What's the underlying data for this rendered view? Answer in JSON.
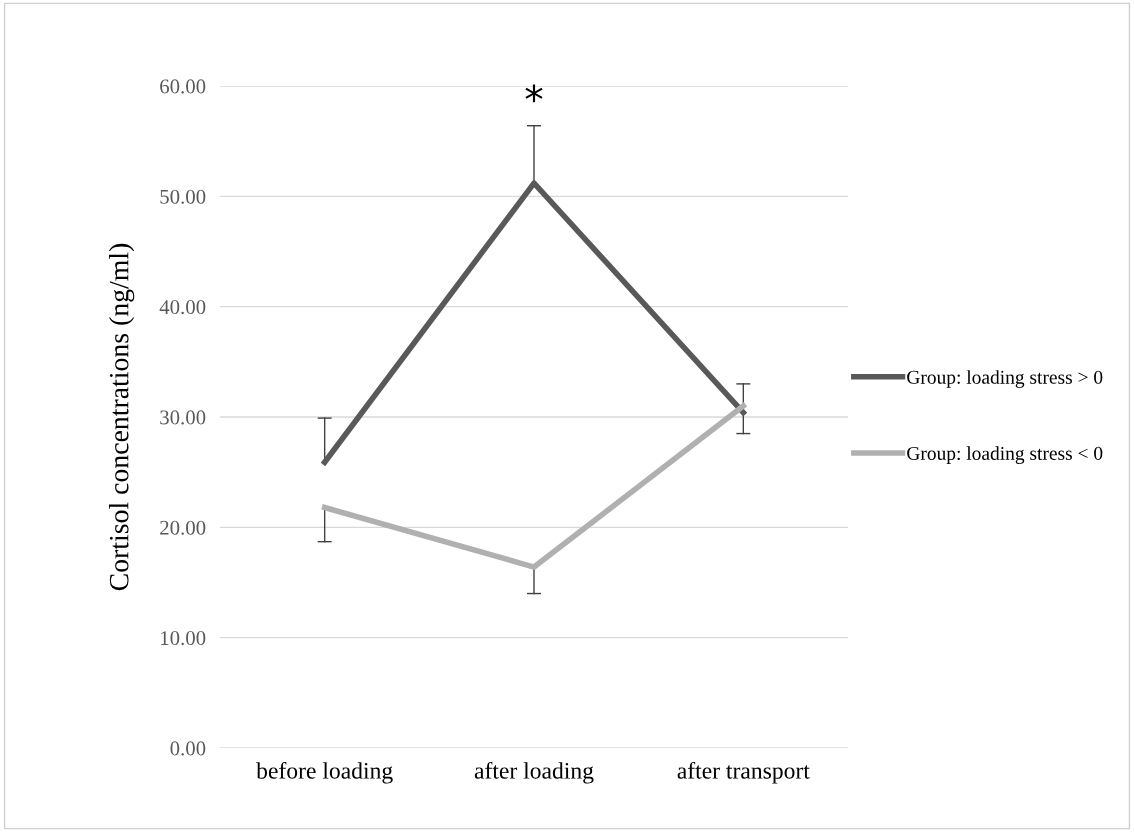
{
  "chart_data": {
    "type": "line",
    "ylabel": "Cortisol concentrations (ng/ml)",
    "categories": [
      "before loading",
      "after loading",
      "after transport"
    ],
    "series": [
      {
        "name": "Group: loading stress > 0",
        "color": "#595959",
        "values": [
          25.9,
          51.2,
          30.4
        ],
        "errors": [
          [
            25.9,
            29.9
          ],
          [
            51.2,
            56.4
          ],
          [
            30.4,
            33.0
          ]
        ]
      },
      {
        "name": "Group: loading stress < 0",
        "color": "#b0b0b0",
        "values": [
          21.8,
          16.4,
          31.0
        ],
        "errors": [
          [
            18.7,
            21.8
          ],
          [
            14.0,
            16.4
          ],
          [
            28.5,
            31.0
          ]
        ]
      }
    ],
    "ylim": [
      0,
      60
    ],
    "yticks": [
      {
        "value": 0,
        "label": "0.00"
      },
      {
        "value": 10,
        "label": "10.00"
      },
      {
        "value": 20,
        "label": "20.00"
      },
      {
        "value": 30,
        "label": "30.00"
      },
      {
        "value": 40,
        "label": "40.00"
      },
      {
        "value": 50,
        "label": "50.00"
      },
      {
        "value": 60,
        "label": "60.00"
      }
    ],
    "grid": "y",
    "legend": "right",
    "marker": "none",
    "line_style": "solid",
    "annotations": [
      "*"
    ]
  }
}
